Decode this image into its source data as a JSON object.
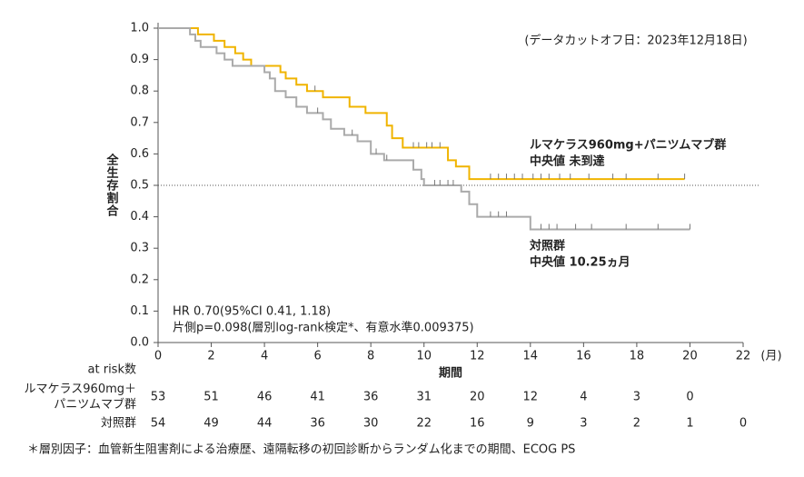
{
  "chart_data": {
    "type": "km",
    "annotation": "(データカットオフ日：2023年12月18日)",
    "y_label": "全生存割合",
    "x_label": "期間",
    "x_unit": "(月)",
    "stats": [
      "HR 0.70(95%CI 0.41, 1.18)",
      "片側p=0.098(層別log-rank検定*、有意水準0.009375)"
    ],
    "xlim": [
      0,
      22
    ],
    "xticks": [
      0,
      2,
      4,
      6,
      8,
      10,
      12,
      14,
      16,
      18,
      20,
      22
    ],
    "ylim": [
      0,
      1
    ],
    "yticks": [
      {
        "value": 0,
        "label": "0.0"
      },
      0.1,
      0.2,
      0.3,
      0.4,
      0.5,
      0.6,
      0.7,
      0.8,
      0.9,
      {
        "value": 1,
        "label": "1.0"
      }
    ],
    "reference_line": 0.5,
    "series": [
      {
        "name": "ルマケラス960mg+パニツムマブ群",
        "median": "中央値 未到達",
        "color": "#f0b400",
        "x": [
          0,
          1.5,
          2.1,
          2.5,
          2.9,
          3.2,
          3.5,
          4.6,
          4.8,
          5.2,
          5.6,
          6.2,
          7.2,
          7.8,
          8.6,
          8.8,
          9.2,
          10.9,
          11.2,
          11.7,
          19.8
        ],
        "values": [
          1.0,
          0.98,
          0.96,
          0.94,
          0.92,
          0.9,
          0.88,
          0.86,
          0.84,
          0.82,
          0.8,
          0.78,
          0.75,
          0.73,
          0.69,
          0.65,
          0.62,
          0.58,
          0.56,
          0.52,
          0.52
        ],
        "censored": [
          5.9,
          9.6,
          9.8,
          10.1,
          10.3,
          10.6,
          12.5,
          12.8,
          13.1,
          13.4,
          13.7,
          14.1,
          14.4,
          14.7,
          15.1,
          15.5,
          16.2,
          17.1,
          17.6,
          18.8,
          19.8
        ]
      },
      {
        "name": "対照群",
        "median": "中央値 10.25ヵ月",
        "color": "#aaaaaa",
        "x": [
          0,
          1.2,
          1.4,
          1.6,
          2.2,
          2.5,
          2.8,
          4.0,
          4.2,
          4.4,
          4.8,
          5.2,
          5.6,
          6.2,
          6.5,
          7.0,
          7.5,
          8.0,
          8.5,
          9.6,
          9.9,
          10.0,
          11.4,
          11.7,
          12.0,
          14.0,
          20.0
        ],
        "values": [
          1.0,
          0.98,
          0.96,
          0.94,
          0.92,
          0.9,
          0.88,
          0.86,
          0.84,
          0.8,
          0.78,
          0.75,
          0.73,
          0.71,
          0.68,
          0.66,
          0.64,
          0.6,
          0.58,
          0.55,
          0.52,
          0.5,
          0.48,
          0.44,
          0.4,
          0.36,
          0.36
        ],
        "censored": [
          6.0,
          7.3,
          8.2,
          8.6,
          10.4,
          10.6,
          10.9,
          11.1,
          12.5,
          12.8,
          13.1,
          14.4,
          14.7,
          15.0,
          15.7,
          16.3,
          17.6,
          18.8,
          20.0
        ]
      }
    ],
    "risk_table": {
      "title": "at risk数",
      "rows": [
        {
          "label": [
            "ルマケラス960mg＋",
            "パニツムマブ群"
          ],
          "values": [
            53,
            51,
            46,
            41,
            36,
            31,
            20,
            12,
            4,
            3,
            0
          ]
        },
        {
          "label": [
            "対照群"
          ],
          "values": [
            54,
            49,
            44,
            36,
            30,
            22,
            16,
            9,
            3,
            2,
            1,
            0
          ]
        }
      ]
    },
    "footnote": "＊層別因子：血管新生阻害剤による治療歴、遠隔転移の初回診断からランダム化までの期間、ECOG PS"
  }
}
